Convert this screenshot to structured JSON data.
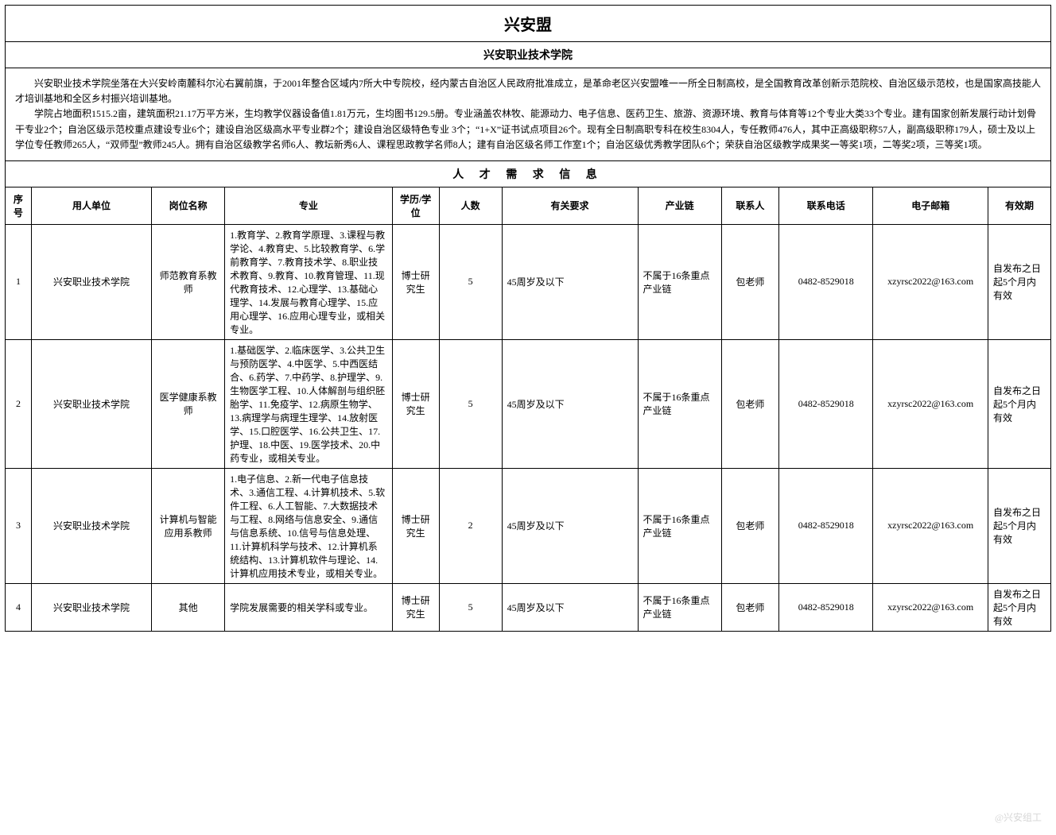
{
  "title": "兴安盟",
  "subtitle": "兴安职业技术学院",
  "intro_paragraphs": [
    "兴安职业技术学院坐落在大兴安岭南麓科尔沁右翼前旗，于2001年整合区域内7所大中专院校，经内蒙古自治区人民政府批准成立，是革命老区兴安盟唯一一所全日制高校，是全国教育改革创新示范院校、自治区级示范校，也是国家高技能人才培训基地和全区乡村振兴培训基地。",
    "学院占地面积1515.2亩，建筑面积21.17万平方米，生均教学仪器设备值1.81万元，生均图书129.5册。专业涵盖农林牧、能源动力、电子信息、医药卫生、旅游、资源环境、教育与体育等12个专业大类33个专业。建有国家创新发展行动计划骨干专业2个；自治区级示范校重点建设专业6个；建设自治区级高水平专业群2个；建设自治区级特色专业 3个；“1+X”证书试点项目26个。现有全日制高职专科在校生8304人，专任教师476人，其中正高级职称57人，副高级职称179人，硕士及以上学位专任教师265人，“双师型”教师245人。拥有自治区级教学名师6人、教坛新秀6人、课程思政教学名师8人；建有自治区级名师工作室1个；自治区级优秀教学团队6个；荣获自治区级教学成果奖一等奖1项，二等奖2项，三等奖1项。"
  ],
  "section_title": "人 才 需 求 信 息",
  "columns": {
    "seq": "序号",
    "unit": "用人单位",
    "post": "岗位名称",
    "major": "专业",
    "edu": "学历/学位",
    "num": "人数",
    "req": "有关要求",
    "chain": "产业链",
    "contact": "联系人",
    "phone": "联系电话",
    "email": "电子邮箱",
    "valid": "有效期"
  },
  "rows": [
    {
      "seq": "1",
      "unit": "兴安职业技术学院",
      "post": "师范教育系教师",
      "major": "1.教育学、2.教育学原理、3.课程与教学论、4.教育史、5.比较教育学、6.学前教育学、7.教育技术学、8.职业技术教育、9.教育、10.教育管理、11.现代教育技术、12.心理学、13.基础心理学、14.发展与教育心理学、15.应用心理学、16.应用心理专业，或相关专业。",
      "edu": "博士研究生",
      "num": "5",
      "req": "45周岁及以下",
      "chain": "不属于16条重点产业链",
      "contact": "包老师",
      "phone": "0482-8529018",
      "email": "xzyrsc2022@163.com",
      "valid": "自发布之日起5个月内有效"
    },
    {
      "seq": "2",
      "unit": "兴安职业技术学院",
      "post": "医学健康系教师",
      "major": "1.基础医学、2.临床医学、3.公共卫生与预防医学、4.中医学、5.中西医结合、6.药学、7.中药学、8.护理学、9.生物医学工程、10.人体解剖与组织胚胎学、11.免疫学、12.病原生物学、13.病理学与病理生理学、14.放射医学、15.口腔医学、16.公共卫生、17.护理、18.中医、19.医学技术、20.中药专业，或相关专业。",
      "edu": "博士研究生",
      "num": "5",
      "req": "45周岁及以下",
      "chain": "不属于16条重点产业链",
      "contact": "包老师",
      "phone": "0482-8529018",
      "email": "xzyrsc2022@163.com",
      "valid": "自发布之日起5个月内有效"
    },
    {
      "seq": "3",
      "unit": "兴安职业技术学院",
      "post": "计算机与智能应用系教师",
      "major": "1.电子信息、2.新一代电子信息技术、3.通信工程、4.计算机技术、5.软件工程、6.人工智能、7.大数据技术与工程、8.网络与信息安全、9.通信与信息系统、10.信号与信息处理、11.计算机科学与技术、12.计算机系统结构、13.计算机软件与理论、14.计算机应用技术专业，或相关专业。",
      "edu": "博士研究生",
      "num": "2",
      "req": "45周岁及以下",
      "chain": "不属于16条重点产业链",
      "contact": "包老师",
      "phone": "0482-8529018",
      "email": "xzyrsc2022@163.com",
      "valid": "自发布之日起5个月内有效"
    },
    {
      "seq": "4",
      "unit": "兴安职业技术学院",
      "post": "其他",
      "major": "学院发展需要的相关学科或专业。",
      "edu": "博士研究生",
      "num": "5",
      "req": "45周岁及以下",
      "chain": "不属于16条重点产业链",
      "contact": "包老师",
      "phone": "0482-8529018",
      "email": "xzyrsc2022@163.com",
      "valid": "自发布之日起5个月内有效"
    }
  ],
  "watermark": "@兴安组工"
}
